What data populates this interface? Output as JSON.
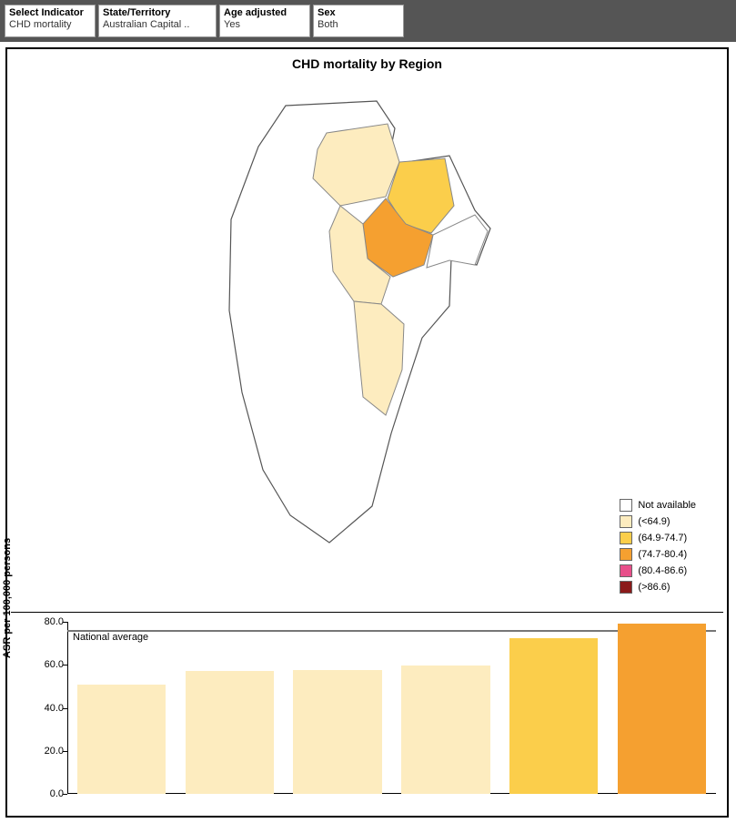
{
  "filters": [
    {
      "label": "Select Indicator",
      "value": "CHD mortality"
    },
    {
      "label": "State/Territory",
      "value": "Australian Capital .."
    },
    {
      "label": "Age adjusted",
      "value": "Yes"
    },
    {
      "label": "Sex",
      "value": "Both"
    }
  ],
  "chart_title": "CHD mortality by Region",
  "colors": {
    "filter_bar_bg": "#555555",
    "panel_border": "#000000",
    "not_available": "#ffffff",
    "bin1": "#fdecbf",
    "bin2": "#fbce4b",
    "bin3": "#f5a030",
    "bin4": "#e84f8a",
    "bin5": "#8b1a1a",
    "nat_avg_line": "#777777",
    "axis": "#000000"
  },
  "legend": {
    "items": [
      {
        "label": "Not available",
        "color_key": "not_available"
      },
      {
        "label": "(<64.9)",
        "color_key": "bin1"
      },
      {
        "label": "(64.9-74.7)",
        "color_key": "bin2"
      },
      {
        "label": "(74.7-80.4)",
        "color_key": "bin3"
      },
      {
        "label": "(80.4-86.6)",
        "color_key": "bin4"
      },
      {
        "label": "(>86.6)",
        "color_key": "bin5"
      }
    ]
  },
  "map": {
    "outline_stroke": "#555555",
    "region_stroke": "#888888",
    "regions": [
      {
        "name": "north-west",
        "color_key": "bin1"
      },
      {
        "name": "north-east",
        "color_key": "bin2"
      },
      {
        "name": "center",
        "color_key": "bin3"
      },
      {
        "name": "east-arm",
        "color_key": "not_available"
      },
      {
        "name": "mid-west",
        "color_key": "bin1"
      },
      {
        "name": "south-strip",
        "color_key": "bin1"
      },
      {
        "name": "outer",
        "color_key": "not_available"
      }
    ]
  },
  "bar_chart": {
    "y_axis_label": "ASR per 100,000 persons",
    "y_min": 0.0,
    "y_max": 80.0,
    "y_ticks": [
      0.0,
      20.0,
      40.0,
      60.0,
      80.0
    ],
    "national_average": {
      "label": "National average",
      "value": 76.0
    },
    "bars": [
      {
        "value": 51.0,
        "color_key": "bin1"
      },
      {
        "value": 57.0,
        "color_key": "bin1"
      },
      {
        "value": 57.5,
        "color_key": "bin1"
      },
      {
        "value": 59.5,
        "color_key": "bin1"
      },
      {
        "value": 72.5,
        "color_key": "bin2"
      },
      {
        "value": 79.0,
        "color_key": "bin3"
      }
    ],
    "bar_gap_ratio": 0.18
  }
}
